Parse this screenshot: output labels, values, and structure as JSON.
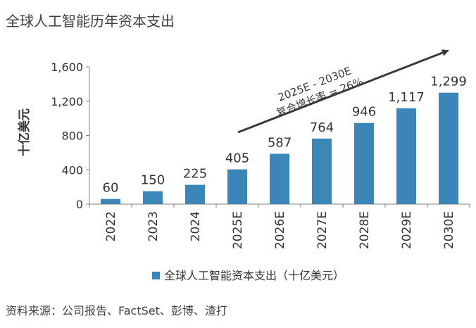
{
  "chart_title": "全球人工智能历年资本支出",
  "source_note": "资料来源：公司报告、FactSet、彭博、渣打",
  "colors": {
    "bar": "#3a86b8",
    "axis": "#808080",
    "text": "#333333"
  },
  "chart_data": {
    "type": "bar",
    "title": "全球人工智能历年资本支出",
    "categories": [
      "2022",
      "2023",
      "2024",
      "2025E",
      "2026E",
      "2027E",
      "2028E",
      "2029E",
      "2030E"
    ],
    "values": [
      60,
      150,
      225,
      405,
      587,
      764,
      946,
      1117,
      1299
    ],
    "value_labels": [
      "60",
      "150",
      "225",
      "405",
      "587",
      "764",
      "946",
      "1,117",
      "1,299"
    ],
    "ylabel": "十亿美元",
    "xlabel": "",
    "ylim": [
      0,
      1600
    ],
    "yticks": [
      0,
      400,
      800,
      1200,
      1600
    ],
    "ytick_labels": [
      "0",
      "400",
      "800",
      "1,200",
      "1,600"
    ],
    "legend": "全球人工智能资本支出（十亿美元）",
    "annotation": {
      "line1": "2025E - 2030E",
      "line2": "复合增长率 = 26%"
    }
  }
}
